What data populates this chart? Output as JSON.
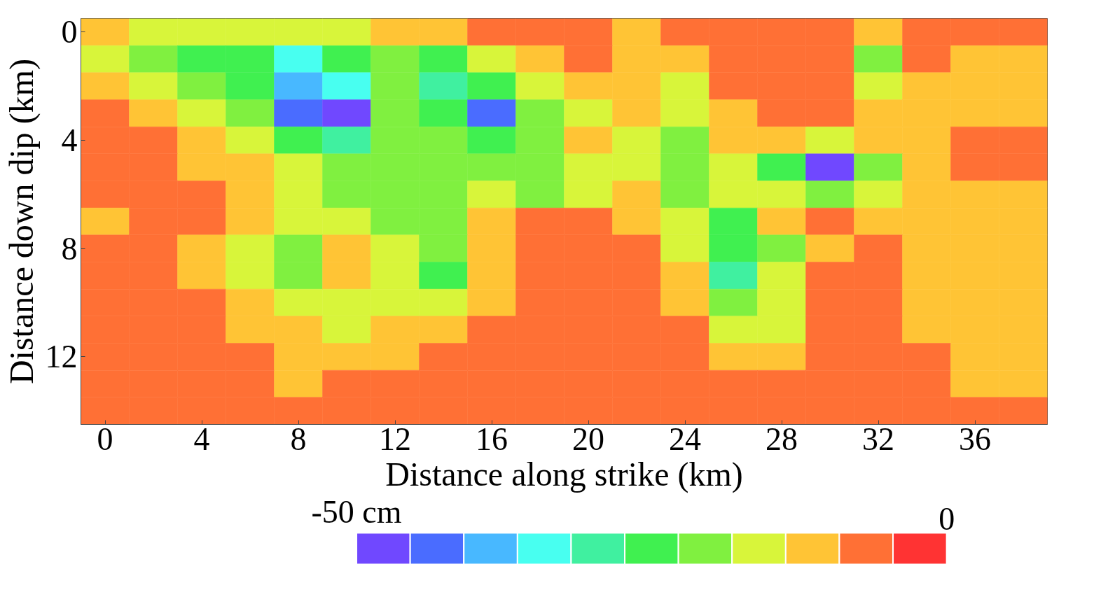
{
  "chart_data": {
    "type": "heatmap",
    "xlabel": "Distance along strike (km)",
    "ylabel": "Distance down dip (km)",
    "categories": [
      "0",
      null,
      "4",
      null,
      "8",
      null,
      "12",
      null,
      "16",
      null,
      "20",
      null,
      "24",
      null,
      "28",
      null,
      "32",
      null,
      "36",
      null
    ],
    "y_categories": [
      "0",
      null,
      null,
      null,
      "4",
      null,
      null,
      null,
      "8",
      null,
      null,
      null,
      "12",
      null,
      null
    ],
    "clim": [
      -50,
      0
    ],
    "cticks": [
      {
        "value": -50,
        "label": "-50 cm"
      },
      0
    ],
    "cells": [
      [
        -11,
        -16,
        -16,
        -16,
        -16,
        -16,
        -11,
        -11,
        -7,
        -7,
        -7,
        -11,
        -7,
        -7,
        -7,
        -7,
        -11,
        -7,
        -7,
        -7
      ],
      [
        -16,
        -20,
        -25,
        -25,
        -34,
        -25,
        -20,
        -25,
        -16,
        -11,
        -7,
        -11,
        -11,
        -7,
        -7,
        -7,
        -20,
        -7,
        -11,
        -11
      ],
      [
        -11,
        -16,
        -20,
        -25,
        -39,
        -34,
        -20,
        -30,
        -25,
        -16,
        -11,
        -11,
        -16,
        -7,
        -7,
        -7,
        -16,
        -11,
        -11,
        -11
      ],
      [
        -7,
        -11,
        -16,
        -20,
        -43,
        -48,
        -20,
        -25,
        -43,
        -20,
        -16,
        -11,
        -16,
        -11,
        -7,
        -7,
        -11,
        -11,
        -11,
        -11
      ],
      [
        -7,
        -7,
        -11,
        -16,
        -25,
        -30,
        -20,
        -20,
        -25,
        -20,
        -11,
        -16,
        -20,
        -11,
        -11,
        -16,
        -11,
        -11,
        -7,
        -7
      ],
      [
        -7,
        -7,
        -11,
        -11,
        -16,
        -20,
        -20,
        -20,
        -20,
        -20,
        -16,
        -16,
        -20,
        -16,
        -25,
        -48,
        -20,
        -11,
        -7,
        -7
      ],
      [
        -7,
        -7,
        -7,
        -11,
        -16,
        -20,
        -20,
        -20,
        -16,
        -20,
        -16,
        -11,
        -20,
        -16,
        -16,
        -20,
        -16,
        -11,
        -11,
        -11
      ],
      [
        -11,
        -7,
        -7,
        -11,
        -16,
        -16,
        -20,
        -20,
        -11,
        -7,
        -7,
        -11,
        -16,
        -25,
        -11,
        -7,
        -11,
        -11,
        -11,
        -11
      ],
      [
        -7,
        -7,
        -11,
        -16,
        -20,
        -11,
        -16,
        -20,
        -11,
        -7,
        -7,
        -7,
        -16,
        -25,
        -20,
        -11,
        -7,
        -11,
        -11,
        -11
      ],
      [
        -7,
        -7,
        -11,
        -16,
        -20,
        -11,
        -16,
        -25,
        -11,
        -7,
        -7,
        -7,
        -11,
        -30,
        -16,
        -7,
        -7,
        -11,
        -11,
        -11
      ],
      [
        -7,
        -7,
        -7,
        -11,
        -16,
        -16,
        -16,
        -16,
        -11,
        -7,
        -7,
        -7,
        -11,
        -20,
        -16,
        -7,
        -7,
        -11,
        -11,
        -11
      ],
      [
        -7,
        -7,
        -7,
        -11,
        -11,
        -16,
        -11,
        -11,
        -7,
        -7,
        -7,
        -7,
        -7,
        -16,
        -16,
        -7,
        -7,
        -11,
        -11,
        -11
      ],
      [
        -7,
        -7,
        -7,
        -7,
        -11,
        -11,
        -11,
        -7,
        -7,
        -7,
        -7,
        -7,
        -7,
        -11,
        -11,
        -7,
        -7,
        -7,
        -11,
        -11
      ],
      [
        -7,
        -7,
        -7,
        -7,
        -11,
        -7,
        -7,
        -7,
        -7,
        -7,
        -7,
        -7,
        -7,
        -7,
        -7,
        -7,
        -7,
        -7,
        -11,
        -11
      ],
      [
        -7,
        -7,
        -7,
        -7,
        -7,
        -7,
        -7,
        -7,
        -7,
        -7,
        -7,
        -7,
        -7,
        -7,
        -7,
        -7,
        -7,
        -7,
        -7,
        -7
      ]
    ]
  }
}
